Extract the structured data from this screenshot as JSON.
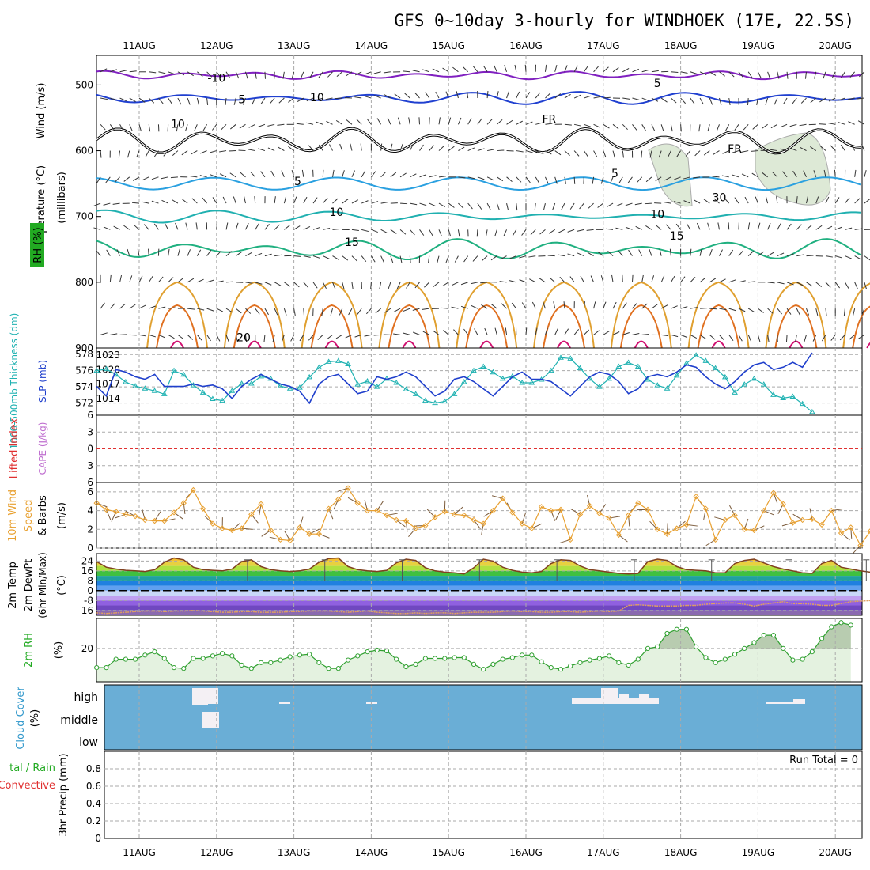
{
  "title": "GFS 0~10day 3-hourly for WINDHOEK (17E, 22.5S)",
  "date_labels": [
    "11AUG",
    "12AUG",
    "13AUG",
    "14AUG",
    "15AUG",
    "16AUG",
    "17AUG",
    "18AUG",
    "19AUG",
    "20AUG"
  ],
  "panel_labels": {
    "upper_wind": "Wind (m/s)",
    "upper_temp": "Temperature (°C)",
    "upper_rh": "RH (%)",
    "upper_unit": "(millibars)",
    "thickness": "1000-500mb Thickness (dm)",
    "slp": "SLP (mb)",
    "lifted": "Lifted Index",
    "cape": "CAPE (J/kg)",
    "wind10_a": "10m Wind",
    "wind10_b": "Speed",
    "wind10_c": "& Barbs",
    "wind10_unit": "(m/s)",
    "temp_a": "2m Temp",
    "temp_b": "2m DewPt",
    "temp_c": "(6hr Min/Max)",
    "temp_unit": "(°C)",
    "rh2m": "2m RH",
    "rh2m_unit": "(%)",
    "cloud_a": "Cloud Cover",
    "cloud_unit": "(%)",
    "precip_a": "tal / Rain",
    "precip_b": "Convective",
    "precip_c": "3hr Precip (mm)"
  },
  "run_total": "Run Total = 0",
  "colors": {
    "thickness": "#20b2b2",
    "slp": "#1f3fcc",
    "wind10": "#e8a030",
    "rh2m": "#30a030",
    "cloud_bg": "#6aaed6",
    "cloud_cloud": "#f4f0f4",
    "lifted_zero": "#e03030",
    "rh_label": "#22aa22",
    "cape_label": "#c070d0",
    "lifted_label": "#e03030",
    "cloud_label": "#3399cc"
  },
  "chart_data": [
    {
      "type": "line",
      "name": "upper-air",
      "y_ticks": [
        500,
        600,
        700,
        800,
        900
      ],
      "ylim": [
        455,
        900
      ],
      "contour_labels": [
        {
          "text": "-10",
          "x": 1.0,
          "y": 495
        },
        {
          "text": "5",
          "x": 6.7,
          "y": 503
        },
        {
          "text": "-5",
          "x": 1.3,
          "y": 528
        },
        {
          "text": "10",
          "x": 2.3,
          "y": 525
        },
        {
          "text": "10",
          "x": 0.5,
          "y": 565
        },
        {
          "text": "FR",
          "x": 5.3,
          "y": 558
        },
        {
          "text": "FR",
          "x": 7.7,
          "y": 603
        },
        {
          "text": "5",
          "x": 2.05,
          "y": 652
        },
        {
          "text": "5",
          "x": 6.15,
          "y": 640
        },
        {
          "text": "30",
          "x": 7.5,
          "y": 677
        },
        {
          "text": "10",
          "x": 2.55,
          "y": 699
        },
        {
          "text": "10",
          "x": 6.7,
          "y": 702
        },
        {
          "text": "15",
          "x": 2.75,
          "y": 745
        },
        {
          "text": "15",
          "x": 6.95,
          "y": 735
        },
        {
          "text": "20",
          "x": 1.35,
          "y": 890
        }
      ]
    },
    {
      "type": "line",
      "name": "thickness-slp",
      "x_step_days": 0.125,
      "y_left_ticks": [
        572,
        574,
        576,
        578
      ],
      "y_right_ticks": [
        1014,
        1017,
        1020,
        1023
      ],
      "series": [
        {
          "name": "1000-500mb Thickness (dm)",
          "values": [
            576.0,
            576.2,
            575.5,
            574.6,
            574.1,
            573.8,
            573.5,
            573.1,
            576.0,
            575.5,
            574.2,
            573.3,
            572.5,
            572.3,
            573.5,
            574.4,
            574.4,
            575.3,
            575.0,
            574.1,
            573.8,
            573.9,
            575.2,
            576.4,
            577.1,
            577.2,
            576.8,
            574.3,
            574.7,
            574.0,
            575.0,
            574.5,
            573.7,
            573.1,
            572.3,
            572.0,
            572.2,
            573.1,
            574.6,
            576.0,
            576.5,
            575.8,
            575.0,
            575.3,
            574.5,
            574.5,
            574.9,
            576.0,
            577.6,
            577.5,
            576.3,
            575.0,
            574.0,
            575.0,
            576.5,
            577.0,
            576.5,
            574.9,
            574.2,
            573.8,
            575.4,
            576.9,
            577.9,
            577.2,
            576.3,
            575.2,
            573.3,
            574.3,
            575.0,
            574.3,
            573.0,
            572.6,
            572.8,
            571.9,
            570.9
          ]
        },
        {
          "name": "SLP (mb)",
          "values": [
            1016.5,
            1014.5,
            1020.0,
            1019.5,
            1018.5,
            1018.0,
            1019.0,
            1016.5,
            1016.5,
            1016.5,
            1017.0,
            1016.5,
            1016.8,
            1016.0,
            1014.0,
            1016.5,
            1018.0,
            1019.0,
            1018.0,
            1017.0,
            1016.5,
            1015.5,
            1013.0,
            1017.0,
            1018.5,
            1019.0,
            1017.0,
            1015.0,
            1015.5,
            1018.5,
            1018.0,
            1018.5,
            1019.5,
            1018.5,
            1016.5,
            1014.5,
            1015.5,
            1018.0,
            1018.5,
            1017.5,
            1016.0,
            1014.5,
            1016.5,
            1018.5,
            1019.5,
            1018.0,
            1018.0,
            1017.5,
            1016.0,
            1014.5,
            1016.5,
            1018.5,
            1019.5,
            1019.0,
            1017.5,
            1015.0,
            1016.0,
            1018.5,
            1019.0,
            1018.5,
            1019.5,
            1021.0,
            1020.5,
            1018.5,
            1017.0,
            1016.0,
            1017.5,
            1019.5,
            1021.0,
            1021.5,
            1020.0,
            1020.5,
            1021.5,
            1020.5,
            1023.5
          ]
        }
      ]
    },
    {
      "type": "line",
      "name": "lifted-index-cape",
      "y_ticks": [
        -6,
        -3,
        0,
        3,
        6
      ],
      "ylim": [
        -6,
        6
      ]
    },
    {
      "type": "line",
      "name": "10m-wind",
      "x_step_days": 0.125,
      "y_ticks": [
        0,
        2,
        4,
        6
      ],
      "ylim": [
        0,
        7
      ],
      "series": [
        {
          "name": "Speed",
          "values": [
            4.8,
            4.1,
            3.9,
            3.6,
            3.4,
            3.0,
            2.9,
            2.9,
            3.8,
            4.8,
            6.2,
            4.2,
            2.6,
            2.1,
            1.9,
            2.1,
            3.6,
            4.7,
            1.9,
            0.9,
            0.8,
            2.2,
            1.5,
            1.5,
            4.2,
            5.2,
            6.4,
            4.8,
            4.0,
            4.0,
            3.5,
            3.0,
            2.9,
            2.1,
            2.4,
            3.3,
            3.9,
            3.6,
            3.5,
            3.0,
            2.6,
            4.0,
            5.3,
            3.8,
            2.6,
            2.1,
            4.4,
            4.0,
            4.1,
            0.9,
            3.6,
            4.5,
            3.7,
            3.2,
            1.4,
            3.5,
            4.8,
            4.1,
            2.0,
            1.5,
            2.1,
            2.5,
            5.5,
            4.2,
            0.9,
            3.0,
            3.5,
            2.0,
            1.9,
            4.0,
            5.9,
            4.7,
            2.7,
            3.0,
            3.1,
            2.5,
            4.0,
            1.6,
            2.2,
            0.3,
            1.8
          ]
        }
      ]
    },
    {
      "type": "area",
      "name": "2m-temp-dewpt",
      "x_step_days": 0.125,
      "y_ticks": [
        -16,
        -8,
        0,
        8,
        16,
        24
      ],
      "ylim": [
        -20,
        30
      ],
      "series": [
        {
          "name": "2m Temp",
          "values": [
            23.5,
            19.0,
            17.5,
            16.5,
            16.0,
            15.5,
            17.0,
            23.0,
            26.5,
            25.0,
            19.0,
            17.0,
            16.5,
            16.0,
            17.5,
            23.5,
            25.0,
            19.5,
            17.0,
            16.0,
            15.5,
            16.0,
            17.5,
            23.0,
            26.0,
            26.5,
            19.5,
            17.0,
            16.0,
            15.5,
            16.5,
            22.5,
            25.5,
            24.5,
            18.5,
            16.0,
            15.0,
            14.5,
            13.5,
            18.5,
            25.5,
            24.0,
            19.0,
            16.5,
            15.0,
            14.5,
            15.5,
            22.0,
            25.0,
            24.5,
            20.0,
            17.0,
            16.0,
            15.0,
            14.0,
            13.5,
            14.0,
            23.5,
            25.5,
            24.5,
            19.5,
            17.0,
            16.5,
            16.0,
            14.5,
            14.5,
            22.0,
            24.5,
            25.5,
            22.5,
            19.5,
            17.5,
            16.0,
            14.5,
            14.0,
            22.0,
            24.5,
            19.0,
            17.5,
            16.0,
            15.0
          ]
        },
        {
          "name": "2m DewPt",
          "values": [
            -18.0,
            -18.5,
            -18.0,
            -17.5,
            -17.0,
            -16.5,
            -16.5,
            -17.0,
            -16.5,
            -16.5,
            -16.0,
            -16.5,
            -17.0,
            -17.5,
            -17.5,
            -17.0,
            -17.0,
            -17.5,
            -17.5,
            -17.5,
            -17.0,
            -17.0,
            -16.5,
            -16.5,
            -16.5,
            -17.0,
            -17.5,
            -17.0,
            -16.5,
            -17.5,
            -18.0,
            -18.5,
            -18.5,
            -18.0,
            -18.5,
            -18.0,
            -18.0,
            -18.5,
            -18.0,
            -17.5,
            -17.5,
            -17.5,
            -17.0,
            -16.5,
            -17.0,
            -17.0,
            -17.5,
            -17.5,
            -17.0,
            -17.0,
            -17.5,
            -17.0,
            -16.5,
            -17.0,
            -16.5,
            -12.0,
            -11.5,
            -12.0,
            -12.5,
            -12.5,
            -12.5,
            -12.0,
            -12.0,
            -11.0,
            -10.5,
            -10.0,
            -10.0,
            -11.0,
            -12.5,
            -11.0,
            -10.0,
            -9.0,
            -10.5,
            -10.5,
            -11.0,
            -12.0,
            -12.0,
            -10.5,
            -9.0,
            -8.5,
            -8.0
          ]
        }
      ],
      "minmax_marks": [
        {
          "x": 1.4,
          "min": 8,
          "max": 25
        },
        {
          "x": 2.4,
          "min": 8,
          "max": 25
        },
        {
          "x": 3.4,
          "min": 8,
          "max": 25
        },
        {
          "x": 4.4,
          "min": 8,
          "max": 25
        },
        {
          "x": 5.4,
          "min": 8,
          "max": 25
        },
        {
          "x": 6.4,
          "min": 8,
          "max": 25
        },
        {
          "x": 7.4,
          "min": 8,
          "max": 25
        },
        {
          "x": 8.4,
          "min": 8,
          "max": 25
        },
        {
          "x": 9.4,
          "min": 8,
          "max": 25
        }
      ]
    },
    {
      "type": "area",
      "name": "2m-rh",
      "x_step_days": 0.125,
      "y_ticks": [
        20
      ],
      "ylim": [
        0,
        38
      ],
      "series": [
        {
          "name": "2m RH",
          "values": [
            8.5,
            8.5,
            13.5,
            13.5,
            13.5,
            16.0,
            18.0,
            14.0,
            8.5,
            8.0,
            14.0,
            14.0,
            15.5,
            17.0,
            15.5,
            10.0,
            8.0,
            11.5,
            11.5,
            13.0,
            15.0,
            16.0,
            16.5,
            11.5,
            8.0,
            8.0,
            13.0,
            15.5,
            18.0,
            19.0,
            18.5,
            13.5,
            9.0,
            10.5,
            14.0,
            14.0,
            14.0,
            14.5,
            14.5,
            10.5,
            7.5,
            10.5,
            13.5,
            14.5,
            16.0,
            16.0,
            12.0,
            8.5,
            7.5,
            9.5,
            11.5,
            13.0,
            14.0,
            15.5,
            11.5,
            10.0,
            13.5,
            20.0,
            21.0,
            29.0,
            31.5,
            31.5,
            21.0,
            14.5,
            11.5,
            13.5,
            16.5,
            20.0,
            23.5,
            28.0,
            28.0,
            20.0,
            13.0,
            13.5,
            18.0,
            26.0,
            33.0,
            35.5,
            34.0
          ]
        }
      ]
    },
    {
      "type": "bar",
      "name": "cloud-cover",
      "categories": [
        "high",
        "middle",
        "low"
      ]
    },
    {
      "type": "bar",
      "name": "3hr-precip",
      "y_ticks": [
        0,
        0.2,
        0.4,
        0.6,
        0.8
      ],
      "ylim": [
        0,
        1.0
      ],
      "values": []
    }
  ]
}
